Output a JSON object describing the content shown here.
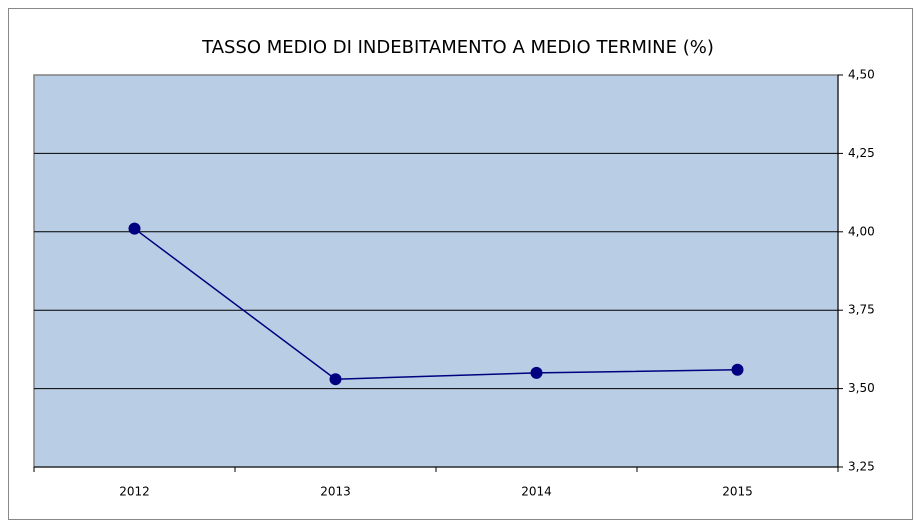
{
  "chart_data": {
    "type": "line",
    "title": "TASSO MEDIO DI INDEBITAMENTO A MEDIO TERMINE (%)",
    "categories": [
      "2012",
      "2013",
      "2014",
      "2015"
    ],
    "values": [
      4.01,
      3.53,
      3.55,
      3.56
    ],
    "color": "#000080",
    "ylim": [
      3.25,
      4.5
    ],
    "yticks": [
      {
        "value": 3.25,
        "label": "3,25"
      },
      {
        "value": 3.5,
        "label": "3,50"
      },
      {
        "value": 3.75,
        "label": "3,75"
      },
      {
        "value": 4.0,
        "label": "4,00"
      },
      {
        "value": 4.25,
        "label": "4,25"
      },
      {
        "value": 4.5,
        "label": "4,50"
      }
    ],
    "grid": true,
    "y_axis_side": "right",
    "plot_background": "#b9cde5"
  }
}
